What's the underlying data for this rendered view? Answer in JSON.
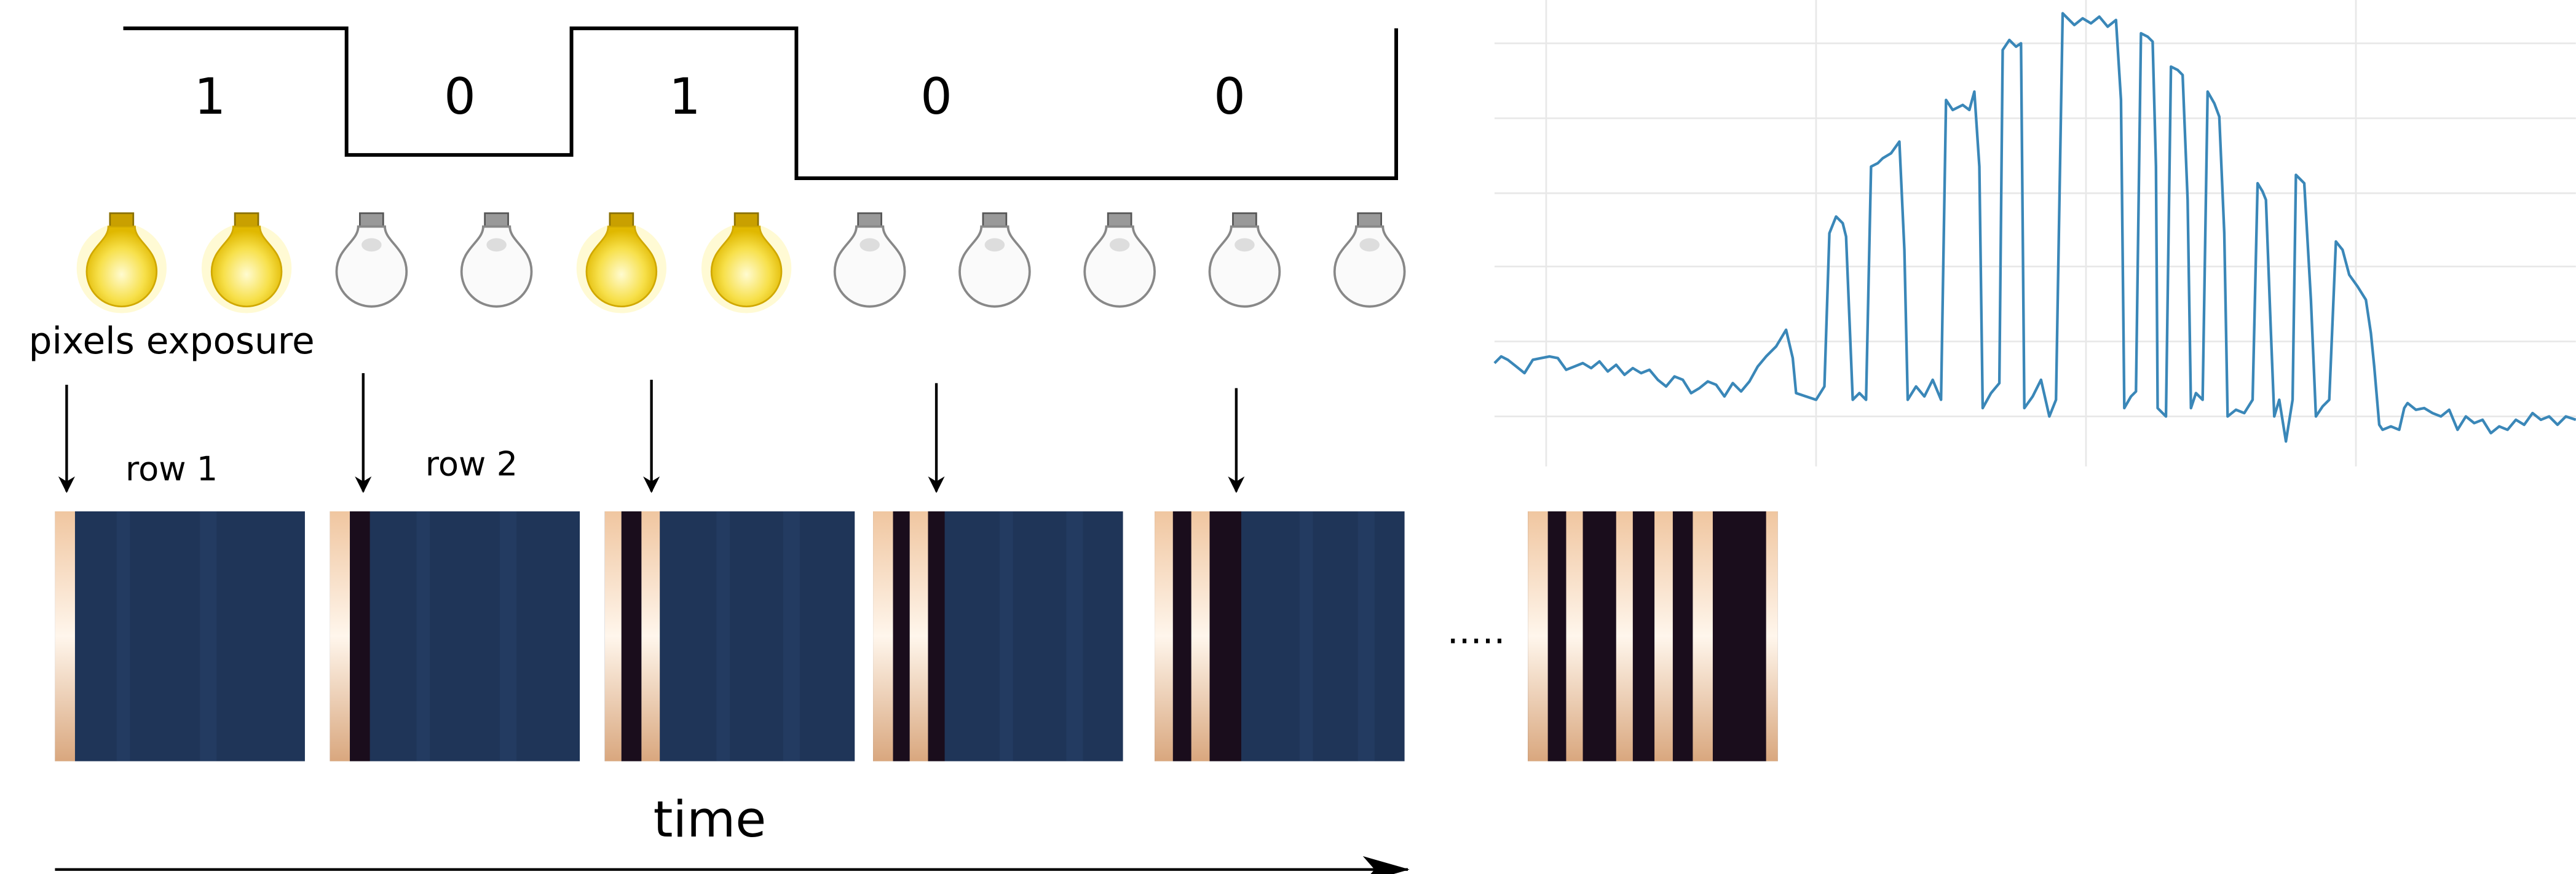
{
  "bits": [
    "1",
    "0",
    "1",
    "0",
    "0"
  ],
  "pixels_exposure_label": "pixels exposure",
  "row_labels": [
    "row 1",
    "row 2"
  ],
  "ellipsis": ".....",
  "time_label": "time"
}
